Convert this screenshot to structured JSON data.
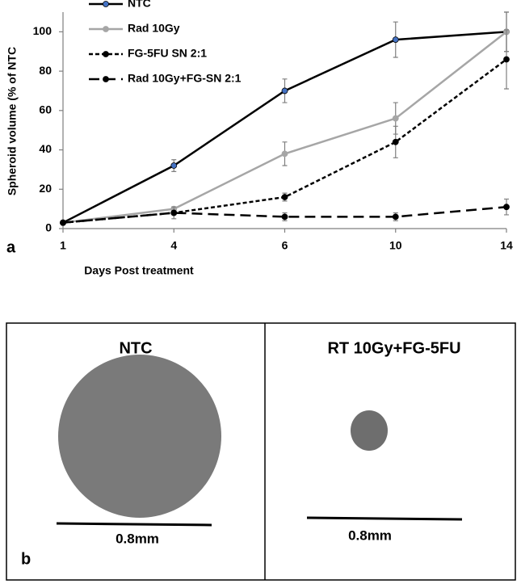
{
  "chart_data": {
    "type": "line",
    "x_label": "Days Post treatment",
    "y_label": "Spheroid volume (% of NTC",
    "categories": [
      "1",
      "4",
      "6",
      "10",
      "14"
    ],
    "ylim": [
      0,
      110
    ],
    "yticks": [
      0,
      20,
      40,
      60,
      80,
      100
    ],
    "legend": "top-left",
    "series": [
      {
        "name": "NTC",
        "color": "#000000",
        "marker_color": "#4472c4",
        "linestyle": "solid",
        "values": [
          3,
          32,
          70,
          96,
          100
        ],
        "errors": [
          0,
          3,
          6,
          9,
          10
        ]
      },
      {
        "name": "Rad 10Gy",
        "color": "#a6a6a6",
        "marker_color": "#a6a6a6",
        "linestyle": "solid",
        "values": [
          3,
          10,
          38,
          56,
          100
        ],
        "errors": [
          0,
          1,
          6,
          8,
          10
        ]
      },
      {
        "name": "FG-5FU SN 2:1",
        "color": "#000000",
        "marker_color": "#000000",
        "linestyle": "dotted",
        "values": [
          3,
          8,
          16,
          44,
          86
        ],
        "errors": [
          0,
          1,
          2,
          8,
          15
        ]
      },
      {
        "name": "Rad 10Gy+FG-SN 2:1",
        "color": "#000000",
        "marker_color": "#000000",
        "linestyle": "dashed",
        "values": [
          3,
          8,
          6,
          6,
          11
        ],
        "errors": [
          0,
          3,
          2,
          2,
          4
        ]
      }
    ]
  },
  "panel_labels": [
    "a",
    "b"
  ],
  "images": [
    {
      "title": "NTC",
      "scale": "0.8mm"
    },
    {
      "title": "RT 10Gy+FG-5FU",
      "scale": "0.8mm"
    }
  ]
}
